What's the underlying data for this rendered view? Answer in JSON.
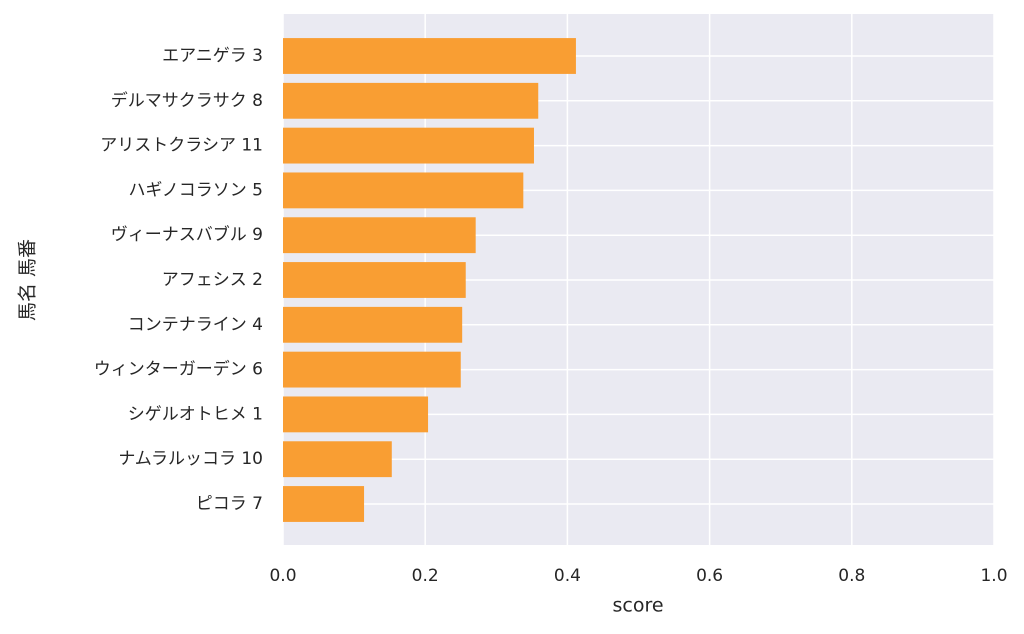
{
  "chart_data": {
    "type": "barh",
    "categories": [
      "エアニゲラ 3",
      "デルマサクラサク 8",
      "アリストクラシア 11",
      "ハギノコラソン 5",
      "ヴィーナスバブル 9",
      "アフェシス 2",
      "コンテナライン 4",
      "ウィンターガーデン 6",
      "シゲルオトヒメ 1",
      "ナムラルッコラ 10",
      "ピコラ 7"
    ],
    "values": [
      0.412,
      0.359,
      0.353,
      0.338,
      0.271,
      0.257,
      0.252,
      0.25,
      0.204,
      0.153,
      0.114
    ],
    "color": "#f99e33",
    "xlabel": "score",
    "ylabel": "馬名 馬番",
    "xlim": [
      0,
      1
    ],
    "xticks": [
      {
        "value": 0,
        "label": "0.0"
      },
      0.2,
      0.4,
      0.6,
      0.8,
      {
        "value": 1,
        "label": "1.0"
      }
    ],
    "grid": true
  }
}
